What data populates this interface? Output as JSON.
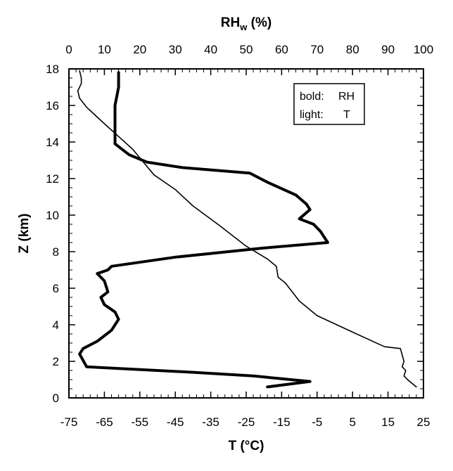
{
  "chart_data": {
    "type": "line",
    "title": "",
    "top_axis": {
      "label_main": "RH",
      "label_sub": "w",
      "label_unit": " (%)",
      "range": [
        0,
        100
      ],
      "ticks": [
        0,
        10,
        20,
        30,
        40,
        50,
        60,
        70,
        80,
        90,
        100
      ]
    },
    "bottom_axis": {
      "label": "T (°C)",
      "range": [
        -75,
        25
      ],
      "ticks": [
        -75,
        -65,
        -55,
        -45,
        -35,
        -25,
        -15,
        -5,
        5,
        15,
        25
      ]
    },
    "left_axis": {
      "label": "Z (km)",
      "range": [
        0,
        18
      ],
      "ticks": [
        0,
        2,
        4,
        6,
        8,
        10,
        12,
        14,
        16,
        18
      ]
    },
    "grid": false,
    "legend": {
      "placement": "top-right",
      "bold_label": "bold:",
      "bold_value": "RH",
      "light_label": "light:",
      "light_value": "T"
    },
    "series": [
      {
        "name": "RH",
        "axis": "top",
        "style": "bold",
        "points": [
          [
            56,
            0.6
          ],
          [
            68,
            0.9
          ],
          [
            52,
            1.2
          ],
          [
            35,
            1.4
          ],
          [
            5,
            1.7
          ],
          [
            3,
            2.4
          ],
          [
            4,
            2.7
          ],
          [
            8,
            3.1
          ],
          [
            12,
            3.7
          ],
          [
            14,
            4.3
          ],
          [
            13,
            4.7
          ],
          [
            10,
            5.1
          ],
          [
            9,
            5.5
          ],
          [
            11,
            5.8
          ],
          [
            10,
            6.4
          ],
          [
            8,
            6.8
          ],
          [
            11,
            7.0
          ],
          [
            12,
            7.2
          ],
          [
            30,
            7.7
          ],
          [
            55,
            8.2
          ],
          [
            73,
            8.5
          ],
          [
            71,
            9.1
          ],
          [
            69,
            9.5
          ],
          [
            65,
            9.8
          ],
          [
            68,
            10.3
          ],
          [
            67,
            10.6
          ],
          [
            64,
            11.1
          ],
          [
            56,
            11.8
          ],
          [
            51,
            12.3
          ],
          [
            32,
            12.6
          ],
          [
            22,
            12.9
          ],
          [
            17,
            13.3
          ],
          [
            15,
            13.6
          ],
          [
            13,
            13.9
          ],
          [
            13,
            14.3
          ],
          [
            13,
            15
          ],
          [
            13,
            16
          ],
          [
            14,
            17
          ],
          [
            14,
            17.8
          ]
        ]
      },
      {
        "name": "T",
        "axis": "bottom",
        "style": "light",
        "points": [
          [
            23,
            0.6
          ],
          [
            20.5,
            1.0
          ],
          [
            19.5,
            1.2
          ],
          [
            20,
            1.5
          ],
          [
            19,
            1.7
          ],
          [
            19.5,
            2.0
          ],
          [
            18.5,
            2.7
          ],
          [
            14,
            2.8
          ],
          [
            5,
            3.6
          ],
          [
            -5,
            4.5
          ],
          [
            -10,
            5.3
          ],
          [
            -14,
            6.3
          ],
          [
            -16,
            6.6
          ],
          [
            -16.5,
            7.2
          ],
          [
            -19,
            7.6
          ],
          [
            -25,
            8.3
          ],
          [
            -33,
            9.5
          ],
          [
            -40,
            10.5
          ],
          [
            -45,
            11.4
          ],
          [
            -51,
            12.2
          ],
          [
            -54,
            12.9
          ],
          [
            -57,
            13.6
          ],
          [
            -61,
            14.3
          ],
          [
            -65,
            15.0
          ],
          [
            -70,
            15.9
          ],
          [
            -72,
            16.4
          ],
          [
            -72.5,
            16.8
          ],
          [
            -71.5,
            17.2
          ],
          [
            -71.5,
            17.5
          ],
          [
            -72,
            17.9
          ]
        ]
      }
    ]
  }
}
